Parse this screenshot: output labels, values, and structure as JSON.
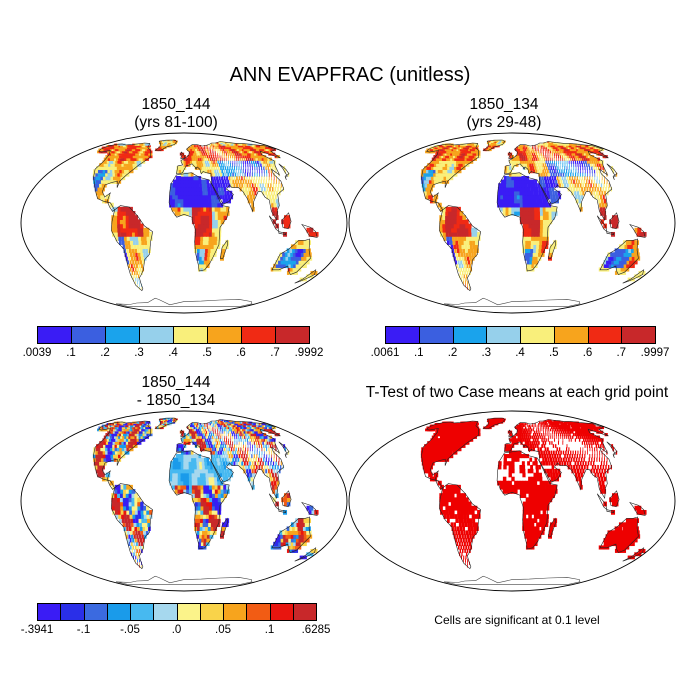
{
  "title": "ANN EVAPFRAC (unitless)",
  "panels": [
    {
      "id": "case1",
      "title_line1": "1850_144",
      "title_line2": "(yrs 81-100)",
      "colorbar": {
        "colors": [
          "#3a1cf5",
          "#3b5fe0",
          "#1aa3ec",
          "#96d0eb",
          "#f9ef7b",
          "#f7a41d",
          "#f02a14",
          "#c8282a"
        ],
        "labels": [
          ".0039",
          ".1",
          ".2",
          ".3",
          ".4",
          ".5",
          ".6",
          ".7",
          ".9992"
        ]
      }
    },
    {
      "id": "case2",
      "title_line1": "1850_134",
      "title_line2": "(yrs 29-48)",
      "colorbar": {
        "colors": [
          "#3a1cf5",
          "#3b5fe0",
          "#1aa3ec",
          "#96d0eb",
          "#f9ef7b",
          "#f7a41d",
          "#f02a14",
          "#c8282a"
        ],
        "labels": [
          ".0061",
          ".1",
          ".2",
          ".3",
          ".4",
          ".5",
          ".6",
          ".7",
          ".9997"
        ]
      }
    },
    {
      "id": "difference",
      "title_line1": "1850_144",
      "title_line2": "- 1850_134",
      "colorbar": {
        "colors": [
          "#3a1cf5",
          "#2a2fe8",
          "#3b6ae0",
          "#1a9bea",
          "#47b9f0",
          "#a6d8ee",
          "#fbf38a",
          "#f9d34a",
          "#f7a41d",
          "#f25c14",
          "#e8150f",
          "#c8282a"
        ],
        "labels": [
          "-.3941",
          "-.1",
          "-.05",
          ".0",
          ".05",
          ".1",
          ".6285"
        ],
        "label_positions": [
          0,
          2,
          4,
          6,
          8,
          10,
          12
        ]
      }
    },
    {
      "id": "ttest",
      "title": "T-Test of two Case means at each grid point",
      "significant_color": "#ee0000",
      "note": "Cells are significant at 0.1 level"
    }
  ]
}
